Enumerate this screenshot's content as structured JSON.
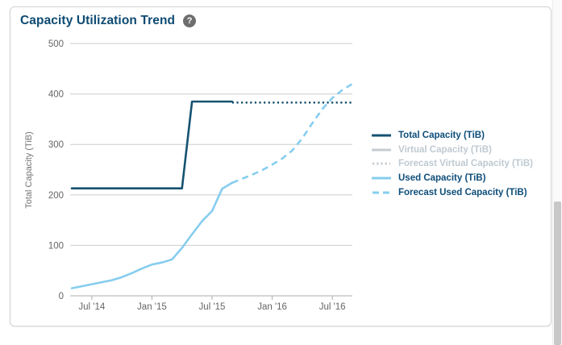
{
  "panel": {
    "title": "Capacity Utilization Trend",
    "help_glyph": "?"
  },
  "colors": {
    "title_text": "#0c4a72",
    "total_line": "#155270",
    "used_line": "#86cdee",
    "disabled_series": "#c5cbd0",
    "legend_active_text": "#0d4d79",
    "legend_inactive_text": "#bfcad2",
    "gridline": "#cdcdcd",
    "axis_line": "#adadad",
    "tick_label": "#666666",
    "y_axis_title": "#757575",
    "scrollbar_thumb": "#c8c8c8"
  },
  "legend": {
    "items": [
      {
        "label": "Total Capacity (TiB)",
        "style": "solid",
        "color": "#155270",
        "active": true
      },
      {
        "label": "Virtual Capacity (TiB)",
        "style": "solid",
        "color": "#c5cbd0",
        "active": false
      },
      {
        "label": "Forecast Virtual Capacity (TiB)",
        "style": "dotted",
        "color": "#c5cbd0",
        "active": false
      },
      {
        "label": "Used Capacity (TiB)",
        "style": "solid",
        "color": "#86cdee",
        "active": true
      },
      {
        "label": "Forecast Used Capacity (TiB)",
        "style": "dashed",
        "color": "#86cdee",
        "active": true
      }
    ]
  },
  "chart_data": {
    "type": "line",
    "title": "Capacity Utilization Trend",
    "xlabel": "",
    "ylabel": "Total Capacity (TiB)",
    "ylim": [
      0,
      500
    ],
    "yticks": [
      0,
      100,
      200,
      300,
      400,
      500
    ],
    "grid": "horizontal",
    "legend_position": "right",
    "x_tick_labels": [
      "Jul '14",
      "Jan '15",
      "Jul '15",
      "Jan '16",
      "Jul '16"
    ],
    "x_tick_indices": [
      2,
      8,
      14,
      20,
      26
    ],
    "x": [
      "May '14",
      "Jun '14",
      "Jul '14",
      "Aug '14",
      "Sep '14",
      "Oct '14",
      "Nov '14",
      "Dec '14",
      "Jan '15",
      "Feb '15",
      "Mar '15",
      "Apr '15",
      "May '15",
      "Jun '15",
      "Jul '15",
      "Aug '15",
      "Sep '15",
      "Oct '15",
      "Nov '15",
      "Dec '15",
      "Jan '16",
      "Feb '16",
      "Mar '16",
      "Apr '16",
      "May '16",
      "Jun '16",
      "Jul '16",
      "Aug '16",
      "Sep '16"
    ],
    "series": [
      {
        "name": "Forecast Used Capacity (TiB)",
        "style": "dashed",
        "color": "#86cdee",
        "width": 2.6,
        "values": [
          null,
          null,
          null,
          null,
          null,
          null,
          null,
          null,
          null,
          null,
          null,
          null,
          null,
          null,
          null,
          null,
          224,
          232,
          240,
          249,
          260,
          272,
          288,
          312,
          342,
          370,
          392,
          408,
          420
        ]
      },
      {
        "name": "Used Capacity (TiB)",
        "style": "solid",
        "color": "#86cdee",
        "width": 2.6,
        "values": [
          15,
          19,
          23,
          27,
          31,
          37,
          45,
          54,
          62,
          66,
          72,
          95,
          122,
          148,
          168,
          212,
          224,
          null,
          null,
          null,
          null,
          null,
          null,
          null,
          null,
          null,
          null,
          null,
          null
        ]
      },
      {
        "name": "Forecast Total Capacity (TiB)",
        "style": "dotted",
        "color": "#155270",
        "width": 2.4,
        "values": [
          null,
          null,
          null,
          null,
          null,
          null,
          null,
          null,
          null,
          null,
          null,
          null,
          null,
          null,
          null,
          null,
          383,
          383,
          383,
          383,
          383,
          383,
          383,
          383,
          383,
          383,
          383,
          383,
          383
        ]
      },
      {
        "name": "Total Capacity (TiB)",
        "style": "solid",
        "color": "#155270",
        "width": 2.6,
        "values": [
          213,
          213,
          213,
          213,
          213,
          213,
          213,
          213,
          213,
          213,
          213,
          213,
          385,
          385,
          385,
          385,
          385,
          null,
          null,
          null,
          null,
          null,
          null,
          null,
          null,
          null,
          null,
          null,
          null
        ]
      }
    ],
    "hidden_series": [
      "Virtual Capacity (TiB)",
      "Forecast Virtual Capacity (TiB)"
    ]
  },
  "scrollbar": {
    "thumb_top": 250,
    "thumb_height": 178
  }
}
